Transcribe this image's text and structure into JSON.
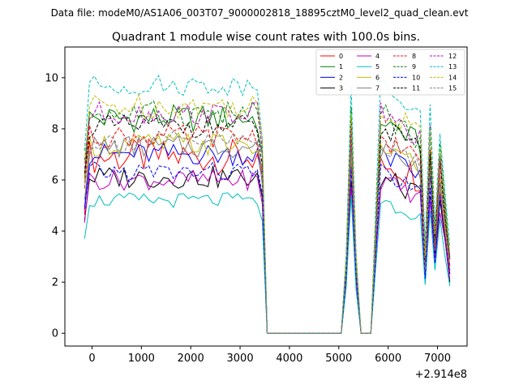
{
  "suptitle": "Data file: modeM0/AS1A06_003T07_9000002818_18895cztM0_level2_quad_clean.evt",
  "chart_data": {
    "type": "line",
    "title": "Quadrant 1 module wise count rates with 100.0s bins.",
    "xlabel": "",
    "ylabel": "",
    "xlim": [
      -550,
      7600
    ],
    "ylim": [
      -0.5,
      11.2
    ],
    "x_offset_label": "+2.914e8",
    "x_ticks": [
      0,
      1000,
      2000,
      3000,
      4000,
      5000,
      6000,
      7000
    ],
    "x_tick_labels": [
      "0",
      "1000",
      "2000",
      "3000",
      "4000",
      "5000",
      "6000",
      "7000"
    ],
    "y_ticks": [
      0,
      2,
      4,
      6,
      8,
      10
    ],
    "y_tick_labels": [
      "0",
      "2",
      "4",
      "6",
      "8",
      "10"
    ],
    "grid": false,
    "legend_position": "top-right",
    "legend_columns": 4,
    "segments": [
      {
        "start": -150,
        "end": 3550,
        "step": 100
      },
      {
        "start": 4050,
        "end": 5050,
        "step": 100
      },
      {
        "start": 5150,
        "end": 7250,
        "step": 100
      }
    ],
    "series": [
      {
        "name": "0",
        "color": "#ff0000",
        "dash": "solid",
        "level": 6.9,
        "amp": 0.7
      },
      {
        "name": "1",
        "color": "#008000",
        "dash": "solid",
        "level": 8.4,
        "amp": 0.55
      },
      {
        "name": "2",
        "color": "#0000ff",
        "dash": "solid",
        "level": 7.0,
        "amp": 0.45
      },
      {
        "name": "3",
        "color": "#000000",
        "dash": "solid",
        "level": 6.1,
        "amp": 0.45
      },
      {
        "name": "4",
        "color": "#bf00bf",
        "dash": "solid",
        "level": 6.0,
        "amp": 0.4
      },
      {
        "name": "5",
        "color": "#00bfbf",
        "dash": "solid",
        "level": 5.2,
        "amp": 0.3
      },
      {
        "name": "6",
        "color": "#bfbf00",
        "dash": "solid",
        "level": 7.4,
        "amp": 0.5
      },
      {
        "name": "7",
        "color": "#808080",
        "dash": "solid",
        "level": 7.3,
        "amp": 0.45
      },
      {
        "name": "8",
        "color": "#ff0000",
        "dash": "dashed",
        "level": 7.7,
        "amp": 0.45
      },
      {
        "name": "9",
        "color": "#008000",
        "dash": "dashed",
        "level": 8.6,
        "amp": 0.5
      },
      {
        "name": "10",
        "color": "#0000ff",
        "dash": "dashed",
        "level": 6.3,
        "amp": 0.4
      },
      {
        "name": "11",
        "color": "#000000",
        "dash": "dashed",
        "level": 8.1,
        "amp": 0.45
      },
      {
        "name": "12",
        "color": "#bf00bf",
        "dash": "dashed",
        "level": 8.6,
        "amp": 0.45
      },
      {
        "name": "13",
        "color": "#00bfbf",
        "dash": "dashed",
        "level": 9.7,
        "amp": 0.4
      },
      {
        "name": "14",
        "color": "#bfbf00",
        "dash": "dashed",
        "level": 8.9,
        "amp": 0.5
      },
      {
        "name": "15",
        "color": "#808080",
        "dash": "dashed",
        "level": 7.5,
        "amp": 0.45
      }
    ]
  }
}
